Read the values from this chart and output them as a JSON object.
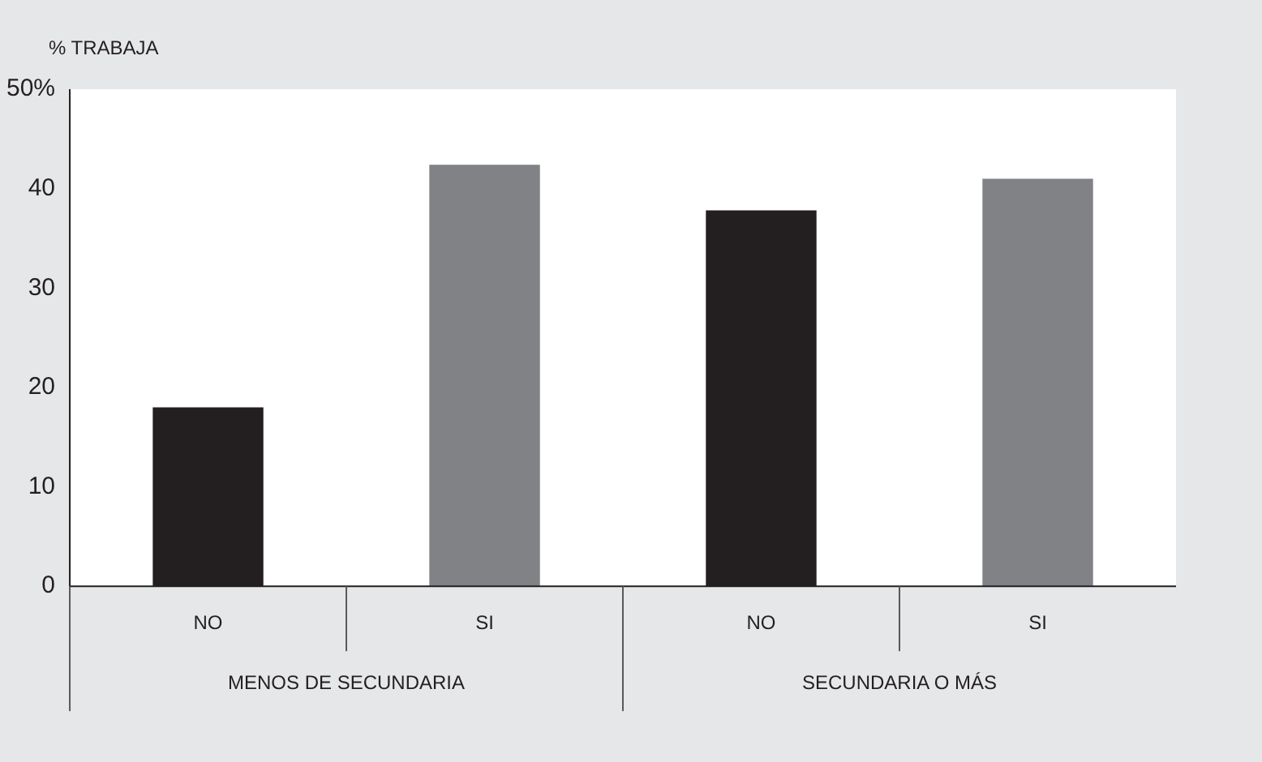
{
  "chart_data": {
    "type": "bar",
    "ylabel": "% TRABAJA",
    "categories": [
      "NO",
      "SI",
      "NO",
      "SI"
    ],
    "values": [
      18,
      42.4,
      37.8,
      41
    ],
    "colors": [
      "#231f20",
      "#808285",
      "#231f20",
      "#808285"
    ],
    "ylim": [
      0,
      50
    ],
    "yticks": [
      0,
      10,
      20,
      30,
      40,
      {
        "value": 50,
        "label": "50%"
      }
    ],
    "annotations": [
      "MENOS DE SECUNDARIA",
      "SECUNDARIA O MÁS"
    ],
    "grid": false,
    "legend": false
  }
}
